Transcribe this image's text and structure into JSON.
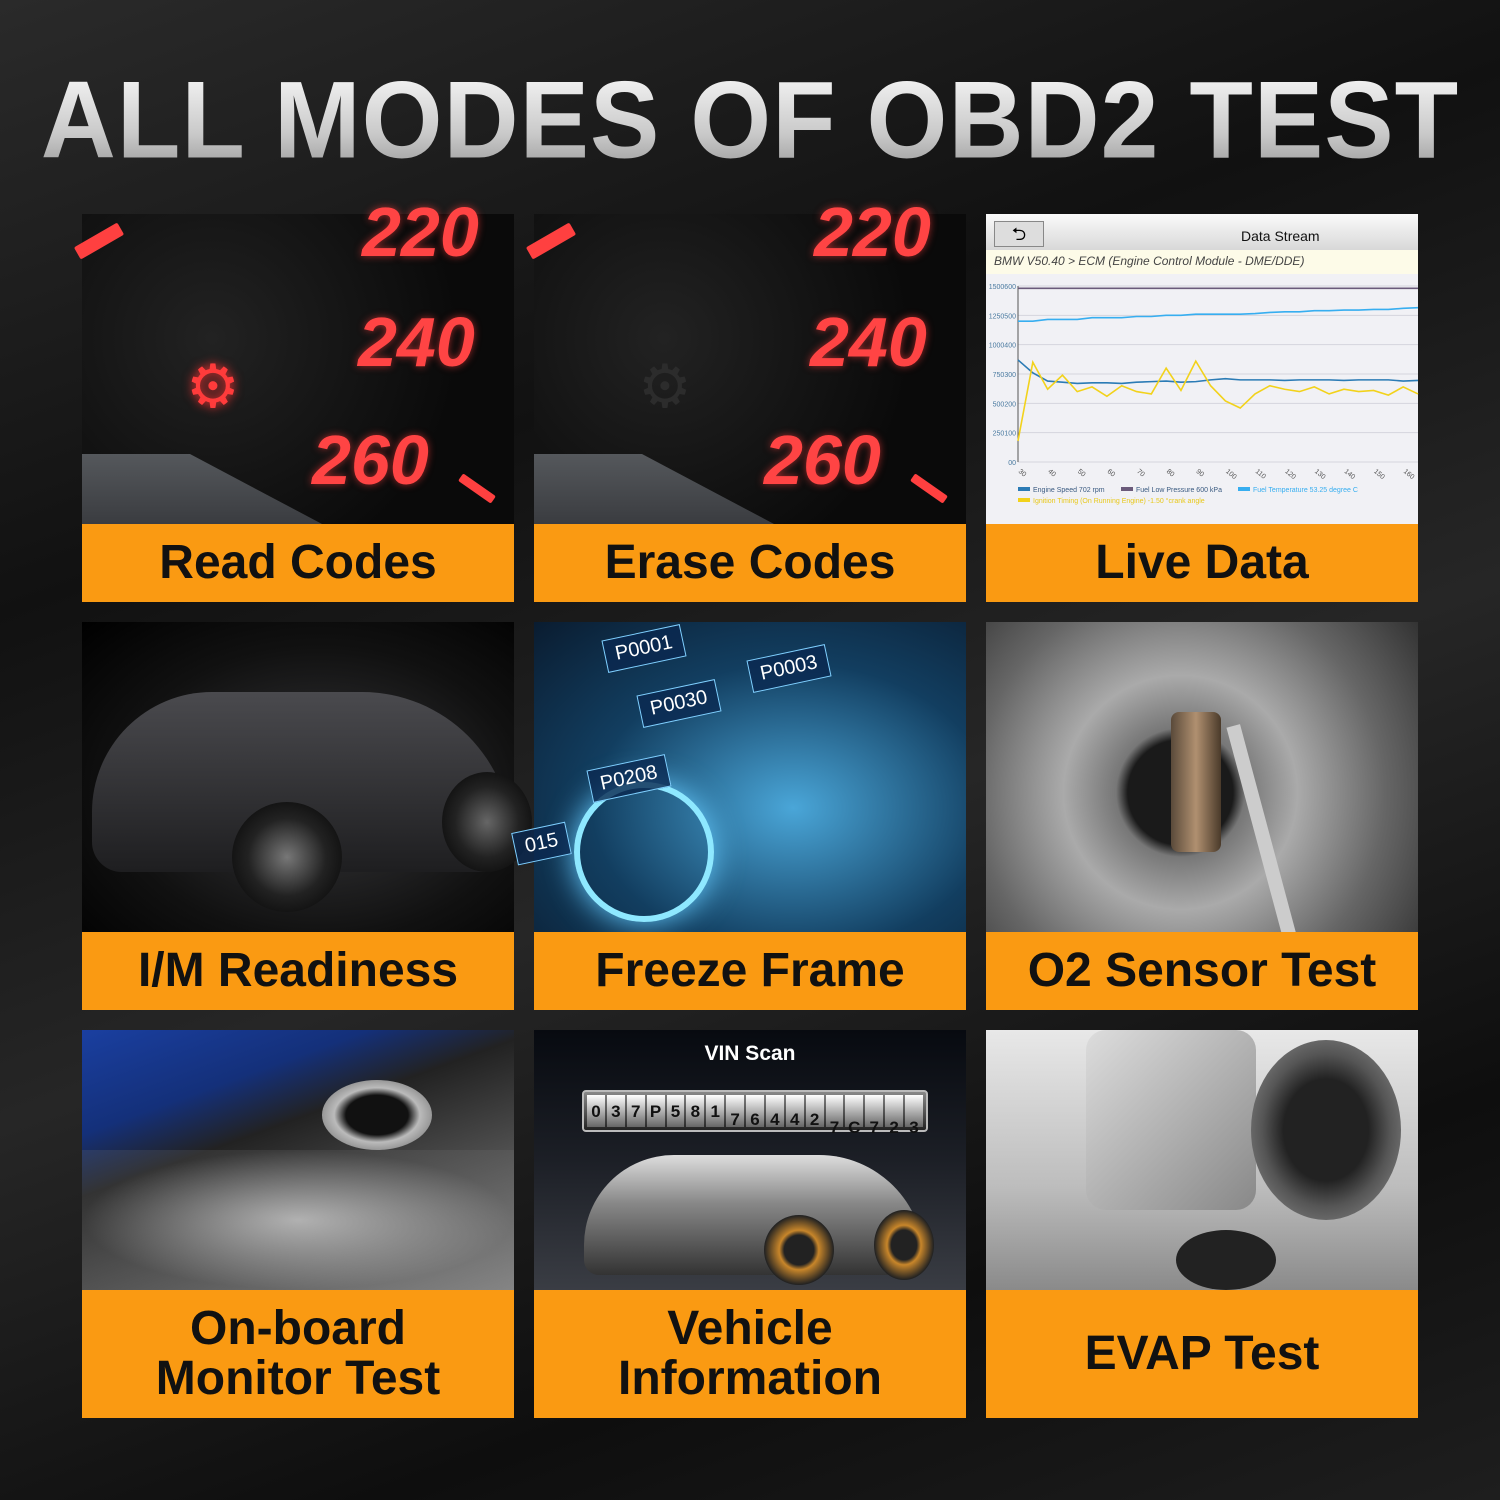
{
  "title": "ALL MODES OF OBD2 TEST",
  "tiles": [
    {
      "label": "Read Codes",
      "speedo": [
        "220",
        "240",
        "260"
      ],
      "icon": "check-engine-icon",
      "icon_color": "#ff3b3b"
    },
    {
      "label": "Erase Codes",
      "speedo": [
        "220",
        "240",
        "260"
      ],
      "icon": "check-engine-icon",
      "icon_color": "#333333"
    },
    {
      "label": "Live Data"
    },
    {
      "label": "I/M Readiness"
    },
    {
      "label": "Freeze Frame",
      "codes": [
        "P0001",
        "P0003",
        "P0030",
        "P0208",
        "015"
      ]
    },
    {
      "label": "O2 Sensor Test"
    },
    {
      "label_lines": [
        "On-board",
        "Monitor Test"
      ]
    },
    {
      "label_lines": [
        "Vehicle",
        "Information"
      ],
      "vin_title": "VIN Scan",
      "vin_chars": [
        "0",
        "3",
        "7",
        "P",
        "5",
        "8",
        "1",
        "7",
        "6",
        "4",
        "4",
        "2",
        "7",
        "C",
        "7",
        "2",
        "3"
      ]
    },
    {
      "label": "EVAP Test"
    }
  ],
  "live_data": {
    "header": "Data Stream",
    "breadcrumb": "BMW V50.40 > ECM (Engine Control Module - DME/DDE)",
    "y_ticks": [
      "1500600",
      "1250500",
      "1000400",
      "750300",
      "500200",
      "250100",
      "00"
    ],
    "x_ticks": [
      "30",
      "40",
      "50",
      "60",
      "70",
      "80",
      "90",
      "100",
      "110",
      "120",
      "130",
      "140",
      "150",
      "160"
    ],
    "legend": [
      "Engine Speed 702 rpm",
      "Fuel Low Pressure 600 kPa",
      "Fuel Temperature 53.25 degree C",
      "Ignition Timing (On Running Engine) -1.50 °crank angle"
    ],
    "colors": [
      "#2b7bb5",
      "#6a5a7a",
      "#37aef0",
      "#f2d21b"
    ],
    "x": [
      30,
      35,
      40,
      45,
      50,
      55,
      60,
      65,
      70,
      75,
      80,
      85,
      90,
      95,
      100,
      105,
      110,
      115,
      120,
      125,
      130,
      135,
      140,
      145,
      150,
      155,
      160,
      165
    ],
    "series": [
      [
        870,
        760,
        690,
        680,
        670,
        675,
        675,
        670,
        680,
        685,
        690,
        680,
        685,
        700,
        710,
        700,
        700,
        700,
        695,
        700,
        700,
        700,
        695,
        700,
        700,
        700,
        690,
        695
      ],
      [
        1480,
        1480,
        1480,
        1480,
        1480,
        1480,
        1480,
        1480,
        1480,
        1480,
        1480,
        1480,
        1480,
        1480,
        1480,
        1480,
        1480,
        1480,
        1480,
        1480,
        1480,
        1480,
        1480,
        1480,
        1480,
        1480,
        1480,
        1480
      ],
      [
        1200,
        1200,
        1215,
        1215,
        1215,
        1230,
        1230,
        1230,
        1240,
        1240,
        1250,
        1250,
        1260,
        1260,
        1260,
        1260,
        1265,
        1275,
        1280,
        1280,
        1290,
        1290,
        1295,
        1295,
        1300,
        1300,
        1310,
        1315
      ],
      [
        180,
        850,
        620,
        740,
        600,
        640,
        560,
        650,
        600,
        580,
        800,
        610,
        860,
        650,
        520,
        460,
        580,
        650,
        620,
        600,
        640,
        580,
        620,
        600,
        610,
        570,
        640,
        580
      ]
    ]
  }
}
